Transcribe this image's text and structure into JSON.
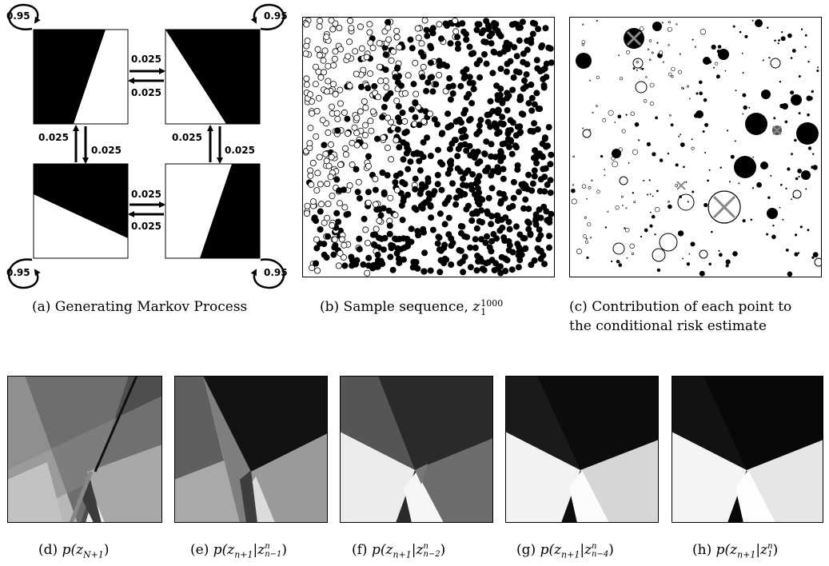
{
  "figure": {
    "markov": {
      "self_prob": "0.95",
      "trans_prob": "0.025",
      "caption": "(a) Generating Markov Process"
    },
    "sample": {
      "caption_text": "(b) Sample sequence, ",
      "caption_var": "z",
      "caption_sup": "1000",
      "caption_sub": "1"
    },
    "contribution": {
      "caption_line1": "(c) Contribution of each point to",
      "caption_line2": "the conditional risk estimate"
    },
    "densities": [
      {
        "label": "(d)",
        "expr_pre": "p(z",
        "sub": "N+1",
        "sup": "",
        "cond_sub": "",
        "close": ")"
      },
      {
        "label": "(e)",
        "expr_pre": "p(z",
        "sub": "n+1",
        "sup": "n",
        "cond_sub": "n−1",
        "close": ")"
      },
      {
        "label": "(f)",
        "expr_pre": "p(z",
        "sub": "n+1",
        "sup": "n",
        "cond_sub": "n−2",
        "close": ")"
      },
      {
        "label": "(g)",
        "expr_pre": "p(z",
        "sub": "n+1",
        "sup": "n",
        "cond_sub": "n−4",
        "close": ")"
      },
      {
        "label": "(h)",
        "expr_pre": "p(z",
        "sub": "n+1",
        "sup": "n",
        "cond_sub": "1",
        "close": ")"
      }
    ]
  }
}
